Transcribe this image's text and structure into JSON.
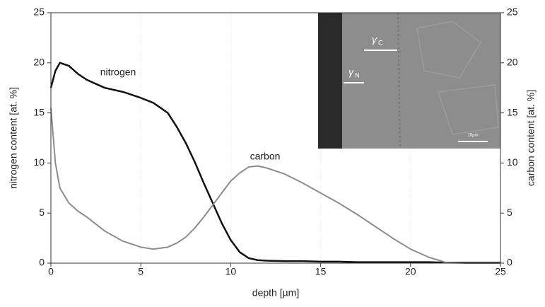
{
  "chart_data": {
    "type": "line",
    "x": [
      0,
      0.25,
      0.5,
      1,
      1.5,
      2,
      3,
      4,
      5,
      5.7,
      6.5,
      7,
      7.5,
      8,
      8.5,
      9,
      9.5,
      10,
      10.5,
      11,
      11.5,
      12,
      13,
      14,
      15,
      16,
      17,
      18,
      19,
      20,
      21,
      22,
      23,
      25
    ],
    "series": [
      {
        "name": "nitrogen",
        "color": "#111111",
        "values": [
          17.5,
          19.2,
          20,
          19.7,
          18.9,
          18.3,
          17.5,
          17.1,
          16.5,
          16.0,
          15.0,
          13.6,
          12.0,
          10.1,
          8.0,
          6.0,
          4.0,
          2.3,
          1.1,
          0.5,
          0.3,
          0.25,
          0.2,
          0.2,
          0.15,
          0.15,
          0.1,
          0.1,
          0.1,
          0.1,
          0.1,
          0.05,
          0.05,
          0.05
        ]
      },
      {
        "name": "carbon",
        "color": "#8c8c8c",
        "axis": "y2",
        "values": [
          15.5,
          10,
          7.5,
          6,
          5.2,
          4.6,
          3.2,
          2.2,
          1.6,
          1.4,
          1.6,
          2.0,
          2.6,
          3.5,
          4.6,
          5.8,
          7.0,
          8.2,
          9.0,
          9.6,
          9.7,
          9.5,
          8.9,
          8.0,
          7.0,
          6.0,
          4.9,
          3.7,
          2.5,
          1.4,
          0.6,
          0.05,
          0,
          0
        ]
      }
    ],
    "xlabel": "depth [µm]",
    "ylabel": "nitrogen content [at. %]",
    "y2label": "carbon content [at. %]",
    "xlim": [
      0,
      25
    ],
    "xticks": [
      0,
      5,
      10,
      15,
      20,
      25
    ],
    "ylim": [
      0,
      25
    ],
    "yticks": [
      0,
      5,
      10,
      15,
      20,
      25
    ],
    "y2lim": [
      0,
      25
    ],
    "y2ticks": [
      0,
      5,
      10,
      15,
      20,
      25
    ],
    "grid": true,
    "inset_labels": [
      {
        "symbol": "γ",
        "sub": "C"
      },
      {
        "symbol": "γ",
        "sub": "N"
      }
    ],
    "inset_scale": "10µm"
  }
}
